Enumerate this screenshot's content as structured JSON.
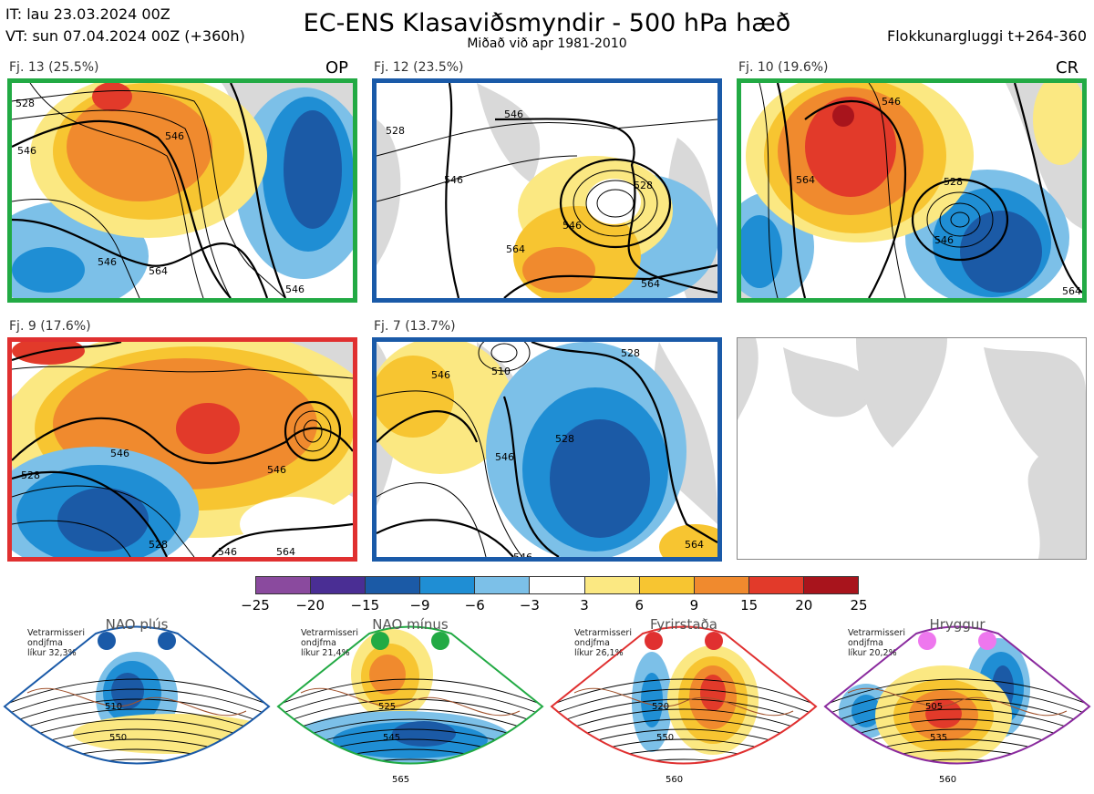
{
  "header": {
    "it": "IT: lau 23.03.2024 00Z",
    "vt": "VT: sun 07.04.2024 00Z  (+360h)",
    "title": "EC-ENS Klasaviðsmyndir - 500 hPa hæð",
    "subtitle": "Miðað við apr 1981-2010",
    "window": "Flokkunargluggi t+264-360"
  },
  "panels": [
    {
      "label": "Fj. 13 (25.5%)",
      "tag": "OP",
      "border": "#22aa44",
      "contours": [
        "528",
        "546",
        "546",
        "564",
        "546",
        "546"
      ]
    },
    {
      "label": "Fj. 12 (23.5%)",
      "tag": "",
      "border": "#1a5aa8",
      "contours": [
        "528",
        "546",
        "546",
        "528",
        "546",
        "564",
        "564"
      ]
    },
    {
      "label": "Fj. 10 (19.6%)",
      "tag": "CR",
      "border": "#22aa44",
      "contours": [
        "546",
        "564",
        "528",
        "546",
        "564"
      ]
    },
    {
      "label": "Fj. 9 (17.6%)",
      "tag": "",
      "border": "#e03030",
      "contours": [
        "546",
        "528",
        "546",
        "528",
        "546",
        "564"
      ]
    },
    {
      "label": "Fj. 7 (13.7%)",
      "tag": "",
      "border": "#1a5aa8",
      "contours": [
        "510",
        "546",
        "528",
        "528",
        "546",
        "546",
        "564"
      ]
    }
  ],
  "colorbar": {
    "ticks": [
      "−25",
      "−20",
      "−15",
      "−9",
      "−6",
      "−3",
      "3",
      "6",
      "9",
      "15",
      "20",
      "25"
    ],
    "colors": [
      "#8a4a9e",
      "#4a2e94",
      "#1b5aa6",
      "#1f8ed4",
      "#7cc0e8",
      "#ffffff",
      "#fbe882",
      "#f7c531",
      "#f08a2e",
      "#e23a2a",
      "#a8141c"
    ]
  },
  "regimes": [
    {
      "name": "NAO plús",
      "desc": "Vetrarmisseri\nondjfma\nlíkur 32,3%",
      "border": "#1a5aa8",
      "dot": "#1a5aa8",
      "contours": [
        "510",
        "550"
      ]
    },
    {
      "name": "NAO mínus",
      "desc": "Vetrarmisseri\nondjfma\nlíkur 21,4%",
      "border": "#22aa44",
      "dot": "#22aa44",
      "contours": [
        "525",
        "545",
        "565"
      ]
    },
    {
      "name": "Fyrirstaða",
      "desc": "Vetrarmisseri\nondjfma\nlíkur 26,1%",
      "border": "#e03030",
      "dot": "#e03030",
      "contours": [
        "520",
        "550",
        "560"
      ]
    },
    {
      "name": "Hryggur",
      "desc": "Vetrarmisseri\nondjfma\nlíkur 20,2%",
      "border": "#8a2a9e",
      "dot": "#ee77ee",
      "contours": [
        "505",
        "535",
        "560"
      ]
    }
  ]
}
